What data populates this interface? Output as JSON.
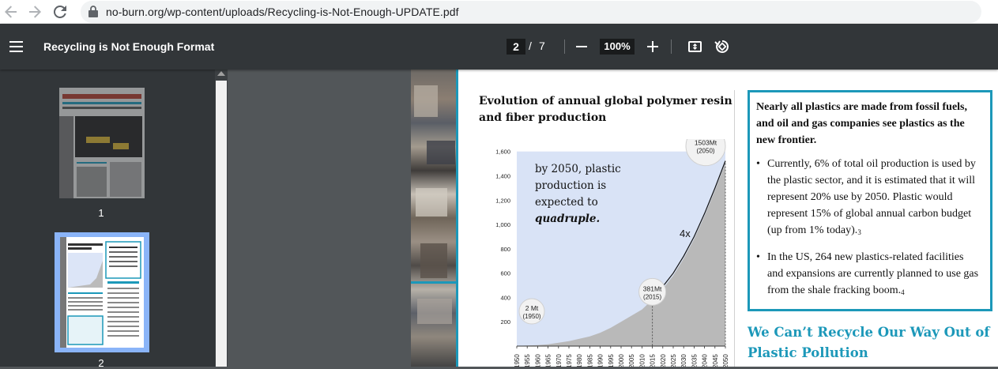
{
  "browser": {
    "url": "no-burn.org/wp-content/uploads/Recycling-is-Not-Enough-UPDATE.pdf",
    "icons": [
      "back-arrow-icon",
      "forward-arrow-icon",
      "reload-icon",
      "lock-icon"
    ]
  },
  "toolbar": {
    "title": "Recycling is Not Enough Format",
    "current_page": "2",
    "separator": "/",
    "total_pages": "7",
    "zoom": "100%",
    "icons": [
      "menu-icon",
      "zoom-out-icon",
      "zoom-in-icon",
      "fit-page-icon",
      "rotate-icon"
    ]
  },
  "sidebar": {
    "thumbnails": [
      {
        "label": "1",
        "selected": false
      },
      {
        "label": "2",
        "selected": true
      }
    ]
  },
  "document": {
    "chart_title": "Evolution of annual global polymer resin and fiber production",
    "callout_heading": "Nearly all plastics are made from fossil fuels, and oil and gas companies see plastics as the new frontier.",
    "callout_bullets": [
      {
        "text": "Currently, 6% of total oil production is used by the plastic sector, and it is estimated that it will represent 20% use by 2050. Plastic would represent 15% of global annual carbon budget (up from 1% today).",
        "note": "3"
      },
      {
        "text": "In the US, 264 new plastics-related facilities and expansions are currently planned to use gas from the shale fracking boom.",
        "note": "4"
      }
    ],
    "section_heading": "We Can’t Recycle Our Way Out of Plastic Pollution",
    "accent_color": "#1c98b9"
  },
  "chart_data": {
    "type": "area",
    "title": "Evolution of annual global polymer resin and fiber production",
    "x": [
      1950,
      1955,
      1960,
      1965,
      1970,
      1975,
      1980,
      1985,
      1990,
      1995,
      2000,
      2005,
      2010,
      2015,
      2020,
      2025,
      2030,
      2035,
      2040,
      2045,
      2050
    ],
    "series": [
      {
        "values": [
          2,
          5,
          8,
          15,
          27,
          40,
          60,
          80,
          110,
          150,
          200,
          250,
          300,
          381,
          null,
          null,
          null,
          null,
          null,
          null,
          null
        ]
      },
      {
        "values": [
          null,
          null,
          null,
          null,
          null,
          null,
          null,
          null,
          null,
          null,
          null,
          null,
          null,
          381,
          470,
          580,
          720,
          880,
          1070,
          1280,
          1503
        ]
      }
    ],
    "yticks": [
      200,
      400,
      600,
      800,
      "1,000",
      "1,200",
      "1,400",
      "1,600"
    ],
    "ylim": [
      0,
      1650
    ],
    "xlim": [
      1950,
      2050
    ],
    "annotations": [
      {
        "label": "2 Mt",
        "sub": "(1950)",
        "x": 1950,
        "y": 2
      },
      {
        "label": "381Mt",
        "sub": "(2015)",
        "x": 2015,
        "y": 381
      },
      {
        "label": "1503Mt",
        "sub": "(2050)",
        "x": 2050,
        "y": 1503
      }
    ],
    "note_lines": [
      "by 2050, plastic",
      "production is",
      "expected to",
      "quadruple."
    ],
    "multiplier_label": "4x"
  }
}
